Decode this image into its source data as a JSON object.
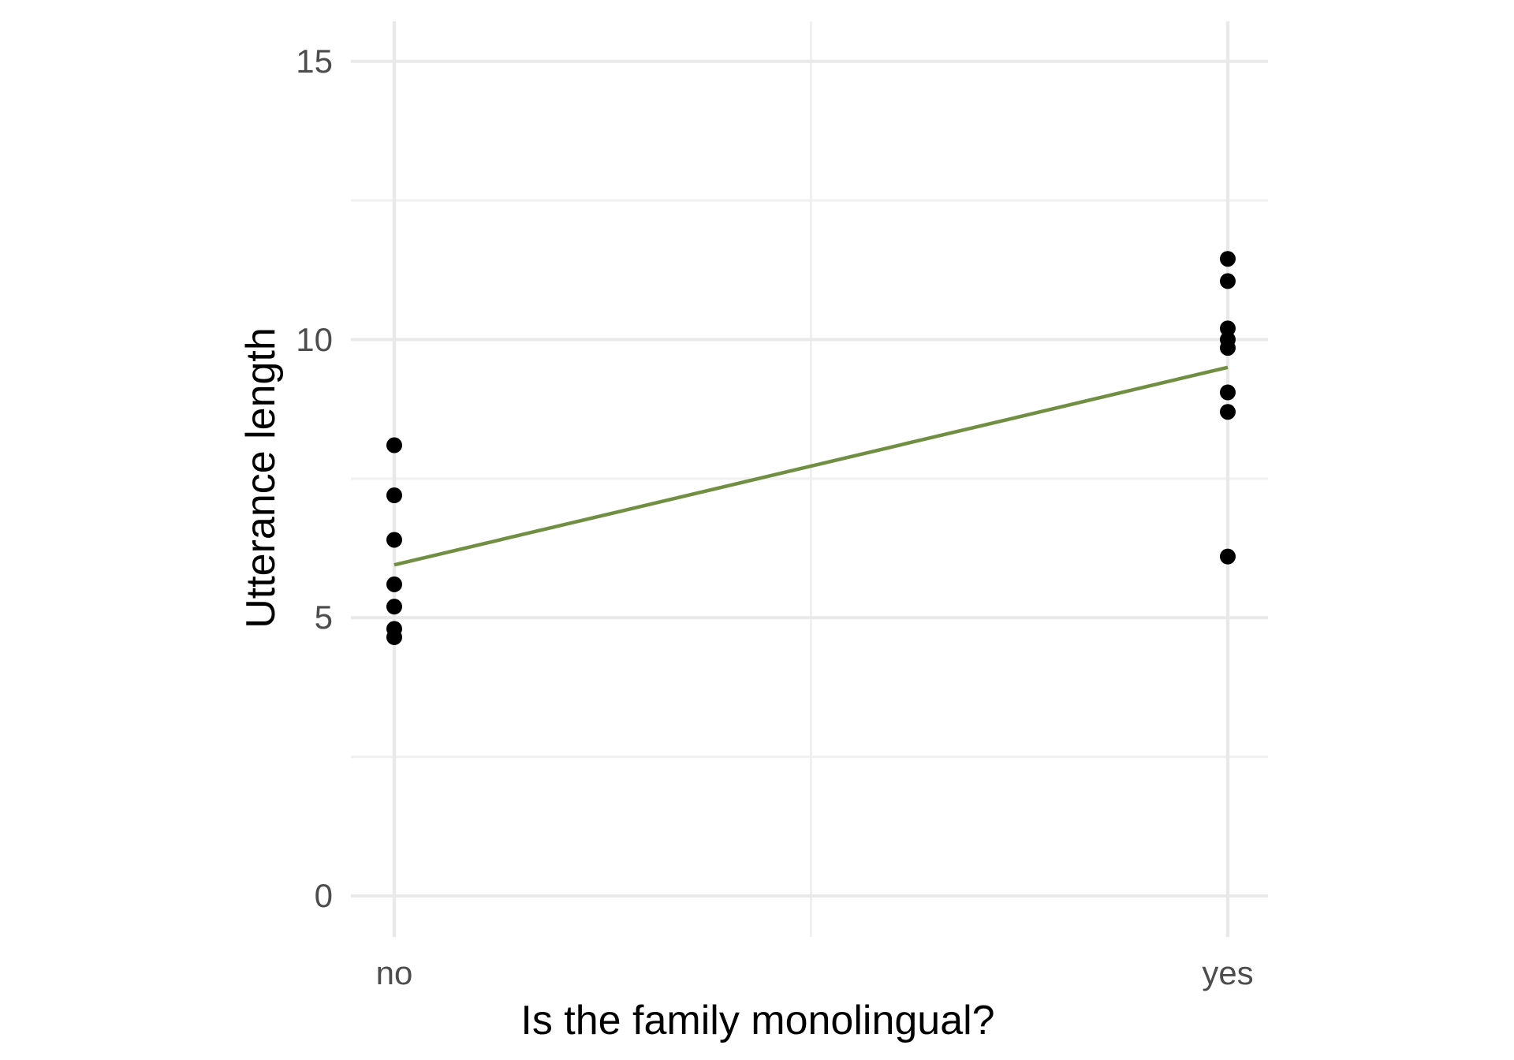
{
  "chart_data": {
    "type": "scatter",
    "title": "",
    "xlabel": "Is the family monolingual?",
    "ylabel": "Utterance length",
    "x_categories": [
      "no",
      "yes"
    ],
    "y_ticks": [
      0,
      5,
      10,
      15
    ],
    "y_minor_gridlines": [
      2.5,
      7.5,
      12.5
    ],
    "x_minor_gridlines": [
      0.5
    ],
    "ylim": [
      0,
      15
    ],
    "grid": "major and minor light-gray gridlines on white panel, no axis lines or tick marks",
    "legend_position": "none",
    "points": {
      "no": [
        8.1,
        7.2,
        6.4,
        5.6,
        5.2,
        4.8,
        4.65
      ],
      "yes": [
        11.45,
        11.05,
        10.2,
        10.0,
        9.85,
        9.05,
        8.7,
        6.1
      ]
    },
    "fit_line": {
      "start_category": "no",
      "end_category": "yes",
      "start_y": 5.95,
      "end_y": 9.5
    },
    "colors": {
      "point": "#000000",
      "fit_line": "#718F43",
      "grid_major": "#E9E9E9",
      "grid_minor": "#F0F0F0",
      "tick_label": "#4D4D4D",
      "axis_title": "#000000",
      "background": "#FFFFFF"
    }
  }
}
